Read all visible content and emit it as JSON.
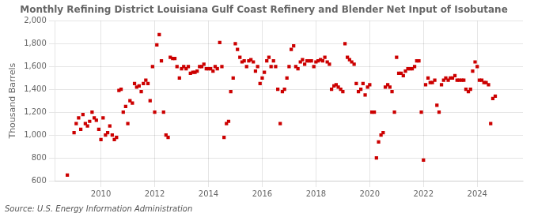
{
  "chart_data": {
    "type": "scatter",
    "title": "Monthly Refining District Louisiana Gulf Coast Refinery and Blender Net Input of Isobutane",
    "y_label": "Thousand Barrels",
    "annotations": [
      "Source: U.S. Energy Information Administration"
    ],
    "color": "#cc0000",
    "marker": "square",
    "grid": true,
    "xlim": [
      2008.3,
      2025.7
    ],
    "xticks": [
      2010,
      2012,
      2014,
      2016,
      2018,
      2020,
      2022,
      2024
    ],
    "ylim": [
      600,
      2000
    ],
    "yticks": [
      600,
      800,
      {
        "value": 1000,
        "label": "1,000"
      },
      {
        "value": 1200,
        "label": "1,200"
      },
      {
        "value": 1400,
        "label": "1,400"
      },
      {
        "value": 1600,
        "label": "1,600"
      },
      {
        "value": 1800,
        "label": "1,800"
      },
      {
        "value": 2000,
        "label": "2,000"
      }
    ],
    "x": [
      2008.75,
      2009.0,
      2009.08,
      2009.17,
      2009.25,
      2009.33,
      2009.42,
      2009.5,
      2009.58,
      2009.67,
      2009.75,
      2009.83,
      2009.92,
      2010.0,
      2010.08,
      2010.17,
      2010.25,
      2010.33,
      2010.42,
      2010.5,
      2010.58,
      2010.67,
      2010.75,
      2010.83,
      2010.92,
      2011.0,
      2011.08,
      2011.17,
      2011.25,
      2011.33,
      2011.42,
      2011.5,
      2011.58,
      2011.67,
      2011.75,
      2011.83,
      2011.92,
      2012.0,
      2012.08,
      2012.17,
      2012.25,
      2012.33,
      2012.42,
      2012.5,
      2012.58,
      2012.67,
      2012.75,
      2012.83,
      2012.92,
      2013.0,
      2013.08,
      2013.17,
      2013.25,
      2013.33,
      2013.42,
      2013.5,
      2013.58,
      2013.67,
      2013.75,
      2013.83,
      2013.92,
      2014.0,
      2014.08,
      2014.17,
      2014.25,
      2014.33,
      2014.42,
      2014.5,
      2014.58,
      2014.67,
      2014.75,
      2014.83,
      2014.92,
      2015.0,
      2015.08,
      2015.17,
      2015.25,
      2015.33,
      2015.42,
      2015.5,
      2015.58,
      2015.67,
      2015.75,
      2015.83,
      2015.92,
      2016.0,
      2016.08,
      2016.17,
      2016.25,
      2016.33,
      2016.42,
      2016.5,
      2016.58,
      2016.67,
      2016.75,
      2016.83,
      2016.92,
      2017.0,
      2017.08,
      2017.17,
      2017.25,
      2017.33,
      2017.42,
      2017.5,
      2017.58,
      2017.67,
      2017.75,
      2017.83,
      2017.92,
      2018.0,
      2018.08,
      2018.17,
      2018.25,
      2018.33,
      2018.42,
      2018.5,
      2018.58,
      2018.67,
      2018.75,
      2018.83,
      2018.92,
      2019.0,
      2019.08,
      2019.17,
      2019.25,
      2019.33,
      2019.42,
      2019.5,
      2019.58,
      2019.67,
      2019.75,
      2019.83,
      2019.92,
      2020.0,
      2020.08,
      2020.17,
      2020.25,
      2020.33,
      2020.42,
      2020.5,
      2020.58,
      2020.67,
      2020.75,
      2020.83,
      2020.92,
      2021.0,
      2021.08,
      2021.17,
      2021.25,
      2021.33,
      2021.42,
      2021.5,
      2021.58,
      2021.67,
      2021.75,
      2021.83,
      2021.92,
      2022.0,
      2022.08,
      2022.17,
      2022.25,
      2022.33,
      2022.42,
      2022.5,
      2022.58,
      2022.67,
      2022.75,
      2022.83,
      2022.92,
      2023.0,
      2023.08,
      2023.17,
      2023.25,
      2023.33,
      2023.42,
      2023.5,
      2023.58,
      2023.67,
      2023.75,
      2023.83,
      2023.92,
      2024.0,
      2024.08,
      2024.17,
      2024.25,
      2024.33,
      2024.42,
      2024.5,
      2024.58,
      2024.67
    ],
    "values": [
      650,
      1020,
      1100,
      1150,
      1050,
      1180,
      1100,
      1080,
      1120,
      1200,
      1150,
      1130,
      1050,
      960,
      1150,
      1000,
      1020,
      1080,
      1000,
      960,
      980,
      1390,
      1400,
      1200,
      1250,
      1100,
      1300,
      1280,
      1450,
      1420,
      1430,
      1380,
      1450,
      1480,
      1450,
      1300,
      1600,
      1200,
      1790,
      1880,
      1650,
      1200,
      1000,
      980,
      1680,
      1670,
      1670,
      1600,
      1500,
      1580,
      1600,
      1580,
      1600,
      1540,
      1550,
      1550,
      1560,
      1600,
      1600,
      1620,
      1580,
      1580,
      1580,
      1560,
      1600,
      1580,
      1810,
      1600,
      980,
      1100,
      1120,
      1380,
      1500,
      1800,
      1750,
      1680,
      1640,
      1650,
      1600,
      1650,
      1660,
      1640,
      1560,
      1600,
      1450,
      1500,
      1550,
      1650,
      1680,
      1600,
      1650,
      1600,
      1400,
      1100,
      1380,
      1400,
      1500,
      1600,
      1750,
      1780,
      1600,
      1580,
      1640,
      1660,
      1620,
      1650,
      1650,
      1650,
      1600,
      1640,
      1650,
      1660,
      1650,
      1680,
      1640,
      1620,
      1400,
      1430,
      1440,
      1420,
      1400,
      1380,
      1800,
      1680,
      1660,
      1640,
      1620,
      1450,
      1380,
      1400,
      1450,
      1350,
      1420,
      1440,
      1200,
      1200,
      800,
      940,
      1000,
      1020,
      1420,
      1440,
      1420,
      1380,
      1200,
      1680,
      1540,
      1540,
      1520,
      1560,
      1580,
      1580,
      1580,
      1600,
      1650,
      1650,
      1200,
      780,
      1440,
      1500,
      1460,
      1460,
      1480,
      1260,
      1200,
      1440,
      1480,
      1500,
      1480,
      1500,
      1500,
      1520,
      1480,
      1480,
      1480,
      1480,
      1400,
      1380,
      1400,
      1560,
      1640,
      1600,
      1480,
      1480,
      1460,
      1460,
      1440,
      1100,
      1320,
      1340
    ]
  }
}
